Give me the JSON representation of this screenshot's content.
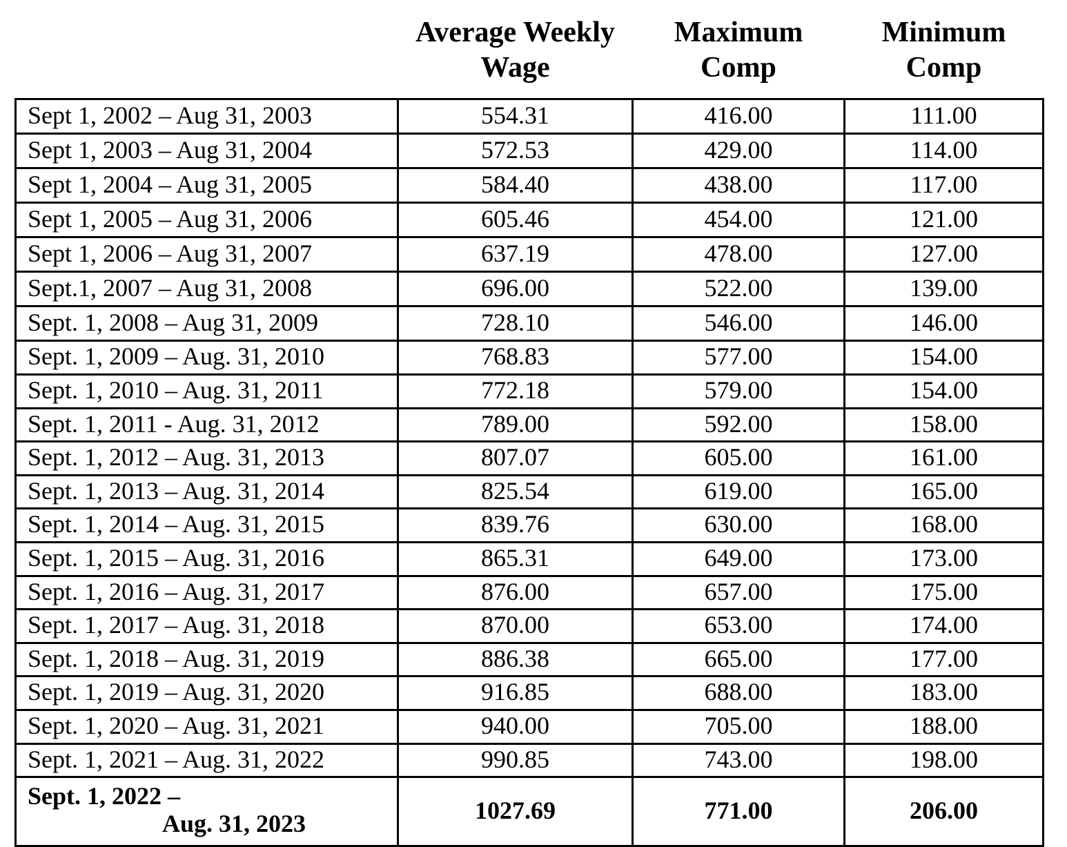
{
  "table": {
    "headers": [
      "Average Weekly\nWage",
      "Maximum\nComp",
      "Minimum\nComp"
    ],
    "rows": [
      {
        "period": "Sept 1, 2002 – Aug 31, 2003",
        "avg_weekly_wage": "554.31",
        "max_comp": "416.00",
        "min_comp": "111.00"
      },
      {
        "period": "Sept 1, 2003 – Aug 31, 2004",
        "avg_weekly_wage": "572.53",
        "max_comp": "429.00",
        "min_comp": "114.00"
      },
      {
        "period": "Sept 1, 2004 – Aug 31, 2005",
        "avg_weekly_wage": "584.40",
        "max_comp": "438.00",
        "min_comp": "117.00"
      },
      {
        "period": "Sept 1, 2005 – Aug 31, 2006",
        "avg_weekly_wage": "605.46",
        "max_comp": "454.00",
        "min_comp": "121.00"
      },
      {
        "period": "Sept 1, 2006 – Aug 31, 2007",
        "avg_weekly_wage": "637.19",
        "max_comp": "478.00",
        "min_comp": "127.00"
      },
      {
        "period": "Sept.1, 2007 – Aug 31, 2008",
        "avg_weekly_wage": "696.00",
        "max_comp": "522.00",
        "min_comp": "139.00"
      },
      {
        "period": "Sept. 1, 2008 – Aug 31, 2009",
        "avg_weekly_wage": "728.10",
        "max_comp": "546.00",
        "min_comp": "146.00"
      },
      {
        "period": "Sept. 1, 2009 – Aug. 31, 2010",
        "avg_weekly_wage": "768.83",
        "max_comp": "577.00",
        "min_comp": "154.00"
      },
      {
        "period": "Sept. 1, 2010 – Aug. 31, 2011",
        "avg_weekly_wage": "772.18",
        "max_comp": "579.00",
        "min_comp": "154.00"
      },
      {
        "period": "Sept. 1, 2011 - Aug. 31, 2012",
        "avg_weekly_wage": "789.00",
        "max_comp": "592.00",
        "min_comp": "158.00"
      },
      {
        "period": "Sept. 1, 2012 – Aug. 31, 2013",
        "avg_weekly_wage": "807.07",
        "max_comp": "605.00",
        "min_comp": "161.00"
      },
      {
        "period": "Sept. 1, 2013 – Aug. 31, 2014",
        "avg_weekly_wage": "825.54",
        "max_comp": "619.00",
        "min_comp": "165.00"
      },
      {
        "period": "Sept. 1, 2014 – Aug. 31, 2015",
        "avg_weekly_wage": "839.76",
        "max_comp": "630.00",
        "min_comp": "168.00"
      },
      {
        "period": "Sept. 1, 2015 – Aug. 31, 2016",
        "avg_weekly_wage": "865.31",
        "max_comp": "649.00",
        "min_comp": "173.00"
      },
      {
        "period": "Sept. 1, 2016 – Aug. 31, 2017",
        "avg_weekly_wage": "876.00",
        "max_comp": "657.00",
        "min_comp": "175.00"
      },
      {
        "period": "Sept. 1, 2017 – Aug. 31, 2018",
        "avg_weekly_wage": "870.00",
        "max_comp": "653.00",
        "min_comp": "174.00"
      },
      {
        "period": "Sept. 1, 2018 – Aug. 31, 2019",
        "avg_weekly_wage": "886.38",
        "max_comp": "665.00",
        "min_comp": "177.00"
      },
      {
        "period": "Sept. 1, 2019 – Aug. 31, 2020",
        "avg_weekly_wage": "916.85",
        "max_comp": "688.00",
        "min_comp": "183.00"
      },
      {
        "period": "Sept. 1, 2020 – Aug. 31, 2021",
        "avg_weekly_wage": "940.00",
        "max_comp": "705.00",
        "min_comp": "188.00"
      },
      {
        "period": "Sept. 1, 2021 – Aug. 31, 2022",
        "avg_weekly_wage": "990.85",
        "max_comp": "743.00",
        "min_comp": "198.00"
      },
      {
        "period_line1": "Sept. 1, 2022 –",
        "period_line2": "Aug. 31, 2023",
        "avg_weekly_wage": "1027.69",
        "max_comp": "771.00",
        "min_comp": "206.00",
        "bold": true
      }
    ],
    "colors": {
      "text": "#000000",
      "border": "#000000",
      "background": "#ffffff"
    }
  }
}
